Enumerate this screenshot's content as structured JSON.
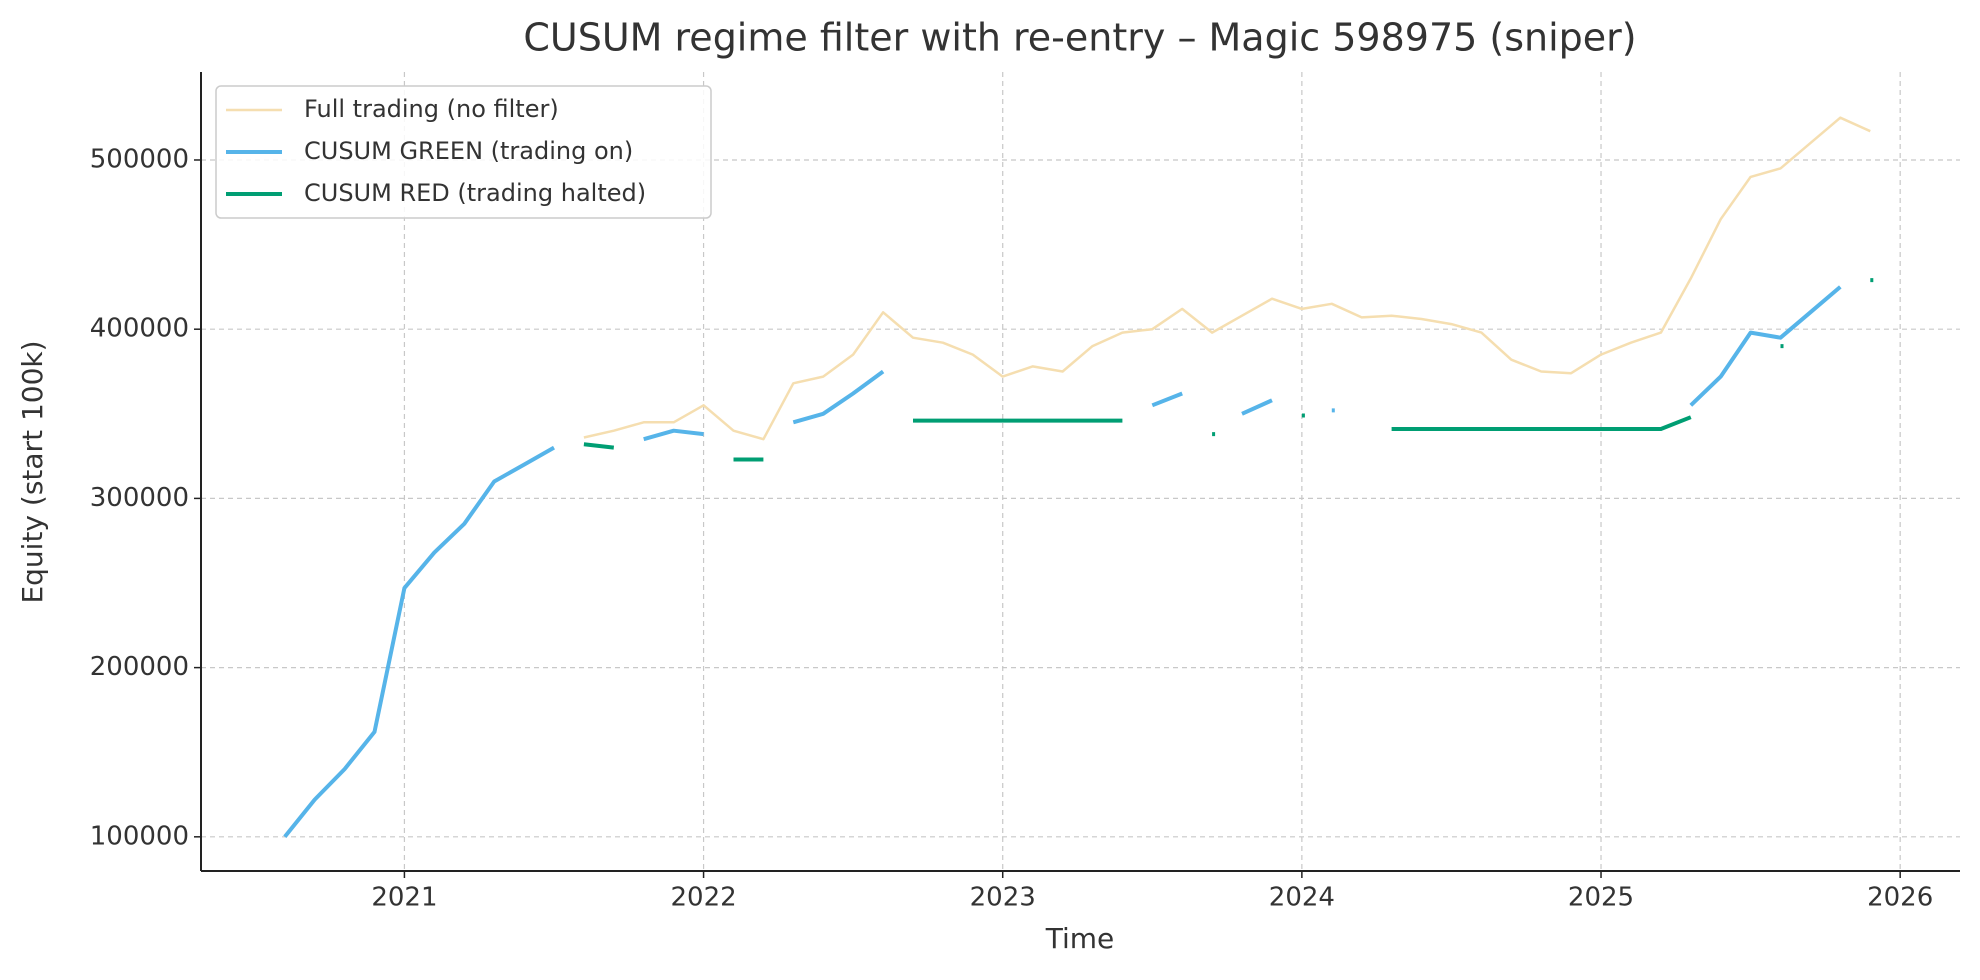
{
  "chart_data": {
    "type": "line",
    "title": "CUSUM regime filter with re-entry – Magic 598975 (sniper)",
    "xlabel": "Time",
    "ylabel": "Equity (start 100k)",
    "x": [
      2020.6,
      2020.7,
      2020.8,
      2020.9,
      2021.0,
      2021.1,
      2021.2,
      2021.3,
      2021.4,
      2021.5,
      2021.6,
      2021.7,
      2021.8,
      2021.9,
      2022.0,
      2022.1,
      2022.2,
      2022.3,
      2022.4,
      2022.5,
      2022.6,
      2022.7,
      2022.8,
      2022.9,
      2023.0,
      2023.1,
      2023.2,
      2023.3,
      2023.4,
      2023.5,
      2023.6,
      2023.7,
      2023.8,
      2023.9,
      2024.0,
      2024.1,
      2024.2,
      2024.3,
      2024.4,
      2024.5,
      2024.6,
      2024.7,
      2024.8,
      2024.9,
      2025.0,
      2025.1,
      2025.2,
      2025.3,
      2025.4,
      2025.5,
      2025.6,
      2025.7,
      2025.8,
      2025.9
    ],
    "series": [
      {
        "name": "Full trading (no filter)",
        "color": "#f5deb0",
        "width": 2.5,
        "values": [
          null,
          null,
          null,
          null,
          null,
          null,
          null,
          null,
          null,
          null,
          336000,
          340000,
          345000,
          345000,
          355000,
          340000,
          335000,
          368000,
          372000,
          385000,
          410000,
          395000,
          392000,
          385000,
          372000,
          378000,
          375000,
          390000,
          398000,
          400000,
          412000,
          398000,
          408000,
          418000,
          412000,
          415000,
          407000,
          408000,
          406000,
          403000,
          398000,
          382000,
          375000,
          374000,
          385000,
          392000,
          398000,
          430000,
          465000,
          490000,
          495000,
          510000,
          525000,
          517000
        ]
      },
      {
        "name": "CUSUM GREEN (trading on)",
        "color": "#56b4e9",
        "width": 4,
        "values": [
          100000,
          122000,
          140000,
          162000,
          247000,
          268000,
          285000,
          310000,
          320000,
          330000,
          null,
          null,
          335000,
          340000,
          338000,
          null,
          null,
          345000,
          350000,
          362000,
          375000,
          null,
          null,
          null,
          null,
          null,
          null,
          null,
          null,
          355000,
          362000,
          null,
          350000,
          358000,
          null,
          352000,
          null,
          null,
          null,
          null,
          null,
          null,
          null,
          null,
          null,
          null,
          null,
          355000,
          372000,
          398000,
          395000,
          410000,
          425000,
          null
        ]
      },
      {
        "name": "CUSUM RED (trading halted)",
        "color": "#009e73",
        "width": 4,
        "values": [
          null,
          null,
          null,
          null,
          null,
          null,
          null,
          null,
          null,
          null,
          332000,
          330000,
          null,
          null,
          null,
          323000,
          323000,
          null,
          null,
          null,
          null,
          346000,
          346000,
          346000,
          346000,
          346000,
          346000,
          346000,
          346000,
          null,
          null,
          338000,
          null,
          null,
          349000,
          null,
          null,
          341000,
          341000,
          341000,
          341000,
          341000,
          341000,
          341000,
          341000,
          341000,
          341000,
          348000,
          null,
          null,
          390000,
          null,
          null,
          429000
        ]
      }
    ],
    "xlim": [
      2020.32,
      2026.2
    ],
    "xticks": [
      2021,
      2022,
      2023,
      2024,
      2025,
      2026
    ],
    "ylim": [
      79800,
      552000
    ],
    "yticks": [
      100000,
      200000,
      300000,
      400000,
      500000
    ],
    "grid": true,
    "legend": "upper left"
  }
}
